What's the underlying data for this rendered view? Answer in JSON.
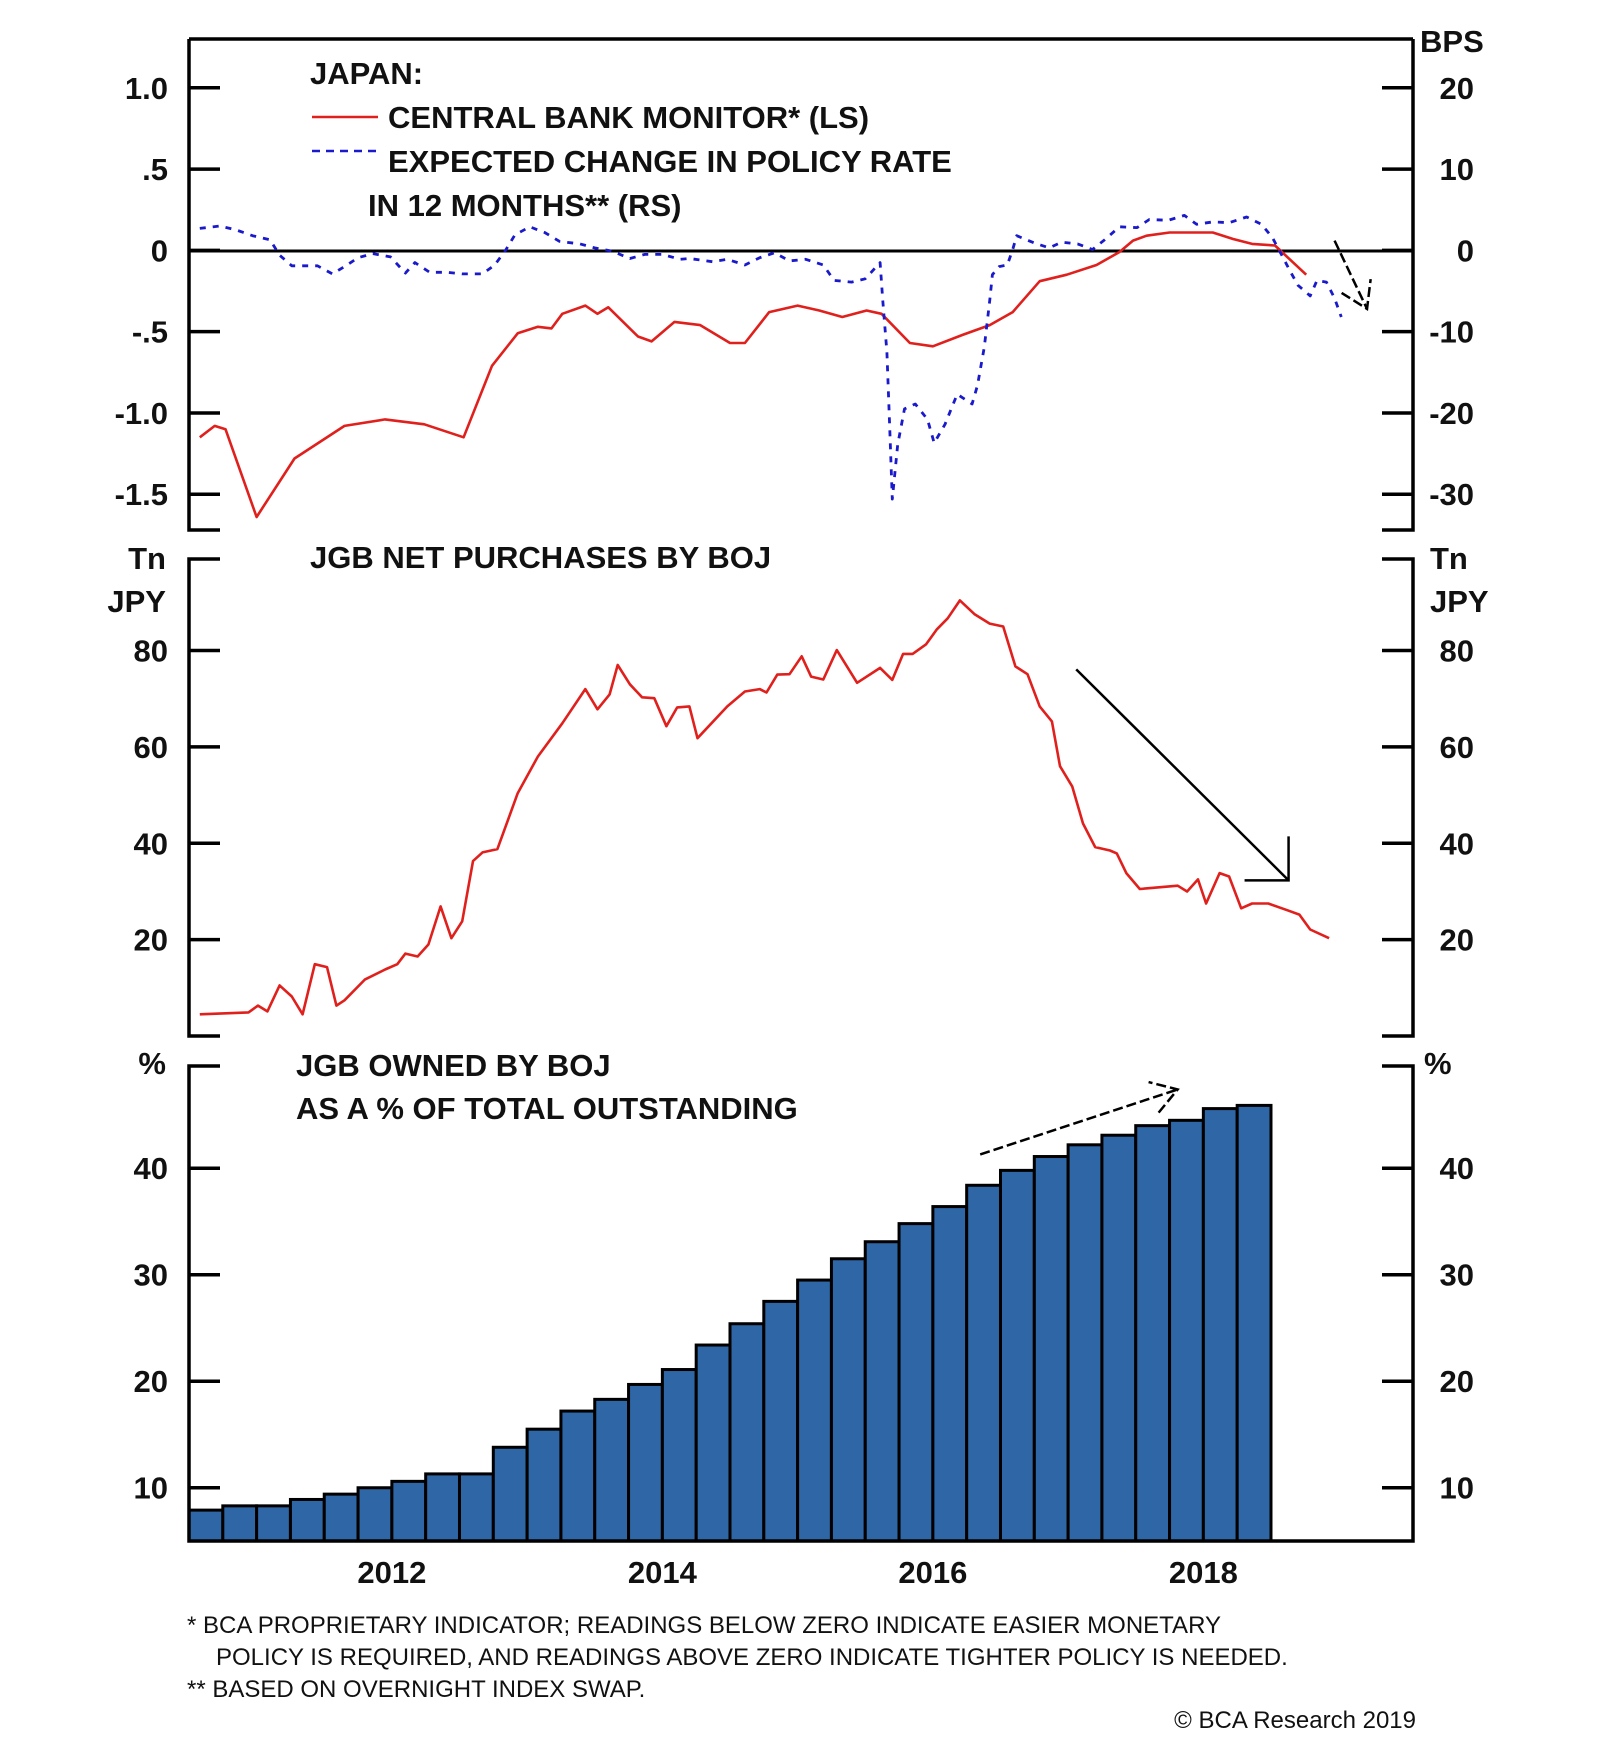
{
  "chart_data": [
    {
      "type": "line",
      "panel": "top",
      "title": "JAPAN:",
      "legend": [
        {
          "label": "CENTRAL BANK MONITOR* (LS)",
          "style": "solid",
          "color": "#e0201c"
        },
        {
          "label": "EXPECTED CHANGE IN POLICY RATE",
          "label2": "IN 12 MONTHS** (RS)",
          "style": "dashed",
          "color": "#1a1acc"
        }
      ],
      "legend_placement": "top-left",
      "left_axis": {
        "label": "",
        "ylim": [
          -1.72,
          1.3
        ],
        "ticks": [
          1.0,
          0.5,
          0,
          -0.5,
          -1.0,
          -1.5
        ],
        "tick_labels": [
          "1.0",
          ".5",
          "0",
          "-.5",
          "-1.0",
          "-1.5"
        ]
      },
      "right_axis": {
        "label": "BPS",
        "ylim": [
          -34.4,
          26
        ],
        "ticks": [
          20,
          10,
          0,
          -10,
          -20,
          -30
        ],
        "tick_labels": [
          "20",
          "10",
          "0",
          "-10",
          "-20",
          "-30"
        ]
      },
      "zero_line": true,
      "series": [
        {
          "name": "CENTRAL BANK MONITOR* (LS)",
          "axis": "left",
          "color": "#e0201c",
          "x": [
            2010.58,
            2010.69,
            2010.77,
            2011.0,
            2011.28,
            2011.65,
            2011.95,
            2012.24,
            2012.53,
            2012.74,
            2012.93,
            2013.08,
            2013.18,
            2013.26,
            2013.43,
            2013.52,
            2013.6,
            2013.82,
            2013.92,
            2014.09,
            2014.28,
            2014.5,
            2014.61,
            2014.79,
            2015.0,
            2015.16,
            2015.33,
            2015.51,
            2015.62,
            2015.83,
            2016.0,
            2016.22,
            2016.42,
            2016.59,
            2016.79,
            2016.99,
            2017.21,
            2017.38,
            2017.48,
            2017.58,
            2017.75,
            2018.07,
            2018.22,
            2018.36,
            2018.53,
            2018.62,
            2018.76
          ],
          "y": [
            -1.15,
            -1.08,
            -1.1,
            -1.64,
            -1.28,
            -1.08,
            -1.04,
            -1.07,
            -1.15,
            -0.71,
            -0.51,
            -0.47,
            -0.48,
            -0.39,
            -0.34,
            -0.39,
            -0.35,
            -0.53,
            -0.56,
            -0.44,
            -0.46,
            -0.57,
            -0.57,
            -0.38,
            -0.34,
            -0.37,
            -0.41,
            -0.37,
            -0.39,
            -0.57,
            -0.59,
            -0.52,
            -0.46,
            -0.38,
            -0.19,
            -0.15,
            -0.09,
            -0.01,
            0.06,
            0.09,
            0.11,
            0.11,
            0.07,
            0.04,
            0.03,
            -0.04,
            -0.15
          ]
        },
        {
          "name": "EXPECTED CHANGE IN POLICY RATE IN 12 MONTHS** (RS)",
          "axis": "right",
          "color": "#1a1acc",
          "x": [
            2010.58,
            2010.73,
            2010.85,
            2010.97,
            2011.1,
            2011.17,
            2011.26,
            2011.45,
            2011.56,
            2011.65,
            2011.75,
            2011.86,
            2011.99,
            2012.1,
            2012.17,
            2012.28,
            2012.41,
            2012.52,
            2012.67,
            2012.76,
            2012.84,
            2012.91,
            2013.02,
            2013.13,
            2013.24,
            2013.39,
            2013.5,
            2013.63,
            2013.76,
            2013.87,
            2014.0,
            2014.13,
            2014.2,
            2014.37,
            2014.48,
            2014.61,
            2014.72,
            2014.83,
            2014.94,
            2015.06,
            2015.19,
            2015.27,
            2015.4,
            2015.5,
            2015.61,
            2015.63,
            2015.66,
            2015.68,
            2015.7,
            2015.74,
            2015.79,
            2015.87,
            2015.96,
            2016.01,
            2016.09,
            2016.18,
            2016.29,
            2016.33,
            2016.38,
            2016.42,
            2016.44,
            2016.49,
            2016.55,
            2016.59,
            2016.62,
            2016.75,
            2016.86,
            2016.95,
            2017.07,
            2017.18,
            2017.27,
            2017.38,
            2017.51,
            2017.6,
            2017.74,
            2017.86,
            2017.95,
            2018.07,
            2018.19,
            2018.32,
            2018.43,
            2018.51,
            2018.58,
            2018.64,
            2018.7,
            2018.79,
            2018.84,
            2018.91,
            2018.97,
            2019.02
          ],
          "y": [
            2.7,
            3.0,
            2.5,
            1.8,
            1.3,
            -0.6,
            -1.9,
            -1.9,
            -2.9,
            -2.0,
            -0.9,
            -0.4,
            -0.8,
            -2.8,
            -1.5,
            -2.7,
            -2.7,
            -2.9,
            -2.9,
            -1.8,
            0.0,
            1.9,
            2.9,
            2.2,
            1.1,
            0.8,
            0.3,
            -0.1,
            -1.0,
            -0.5,
            -0.5,
            -1.1,
            -1.0,
            -1.4,
            -1.1,
            -1.8,
            -0.9,
            -0.3,
            -1.3,
            -1.1,
            -1.8,
            -3.7,
            -3.9,
            -3.5,
            -1.5,
            -6.2,
            -12.5,
            -21.4,
            -30.6,
            -23.9,
            -19.5,
            -18.9,
            -20.8,
            -23.7,
            -21.4,
            -17.7,
            -18.9,
            -16.6,
            -11.9,
            -6.2,
            -3.0,
            -2.0,
            -1.8,
            0.1,
            1.8,
            0.9,
            0.3,
            1.0,
            0.8,
            0.1,
            1.3,
            2.9,
            2.8,
            3.8,
            3.7,
            4.3,
            3.2,
            3.5,
            3.4,
            4.1,
            3.2,
            1.6,
            -0.6,
            -2.5,
            -4.3,
            -5.6,
            -3.7,
            -3.9,
            -5.9,
            -8.2
          ]
        }
      ],
      "annotations": [
        {
          "type": "arrow",
          "direction": "down",
          "from": [
            2018.97,
            1.2
          ],
          "to": [
            2019.21,
            -7.2
          ],
          "axis": "right"
        }
      ]
    },
    {
      "type": "line",
      "panel": "middle",
      "title": "JGB NET PURCHASES BY BOJ",
      "left_axis": {
        "label": "Tn JPY",
        "label_lines": [
          "Tn",
          "JPY"
        ],
        "ylim": [
          0,
          99
        ],
        "ticks": [
          80,
          60,
          40,
          20
        ],
        "tick_labels": [
          "80",
          "60",
          "40",
          "20"
        ]
      },
      "right_axis": {
        "label": "Tn JPY",
        "label_lines": [
          "Tn",
          "JPY"
        ],
        "ylim": [
          0,
          99
        ],
        "ticks": [
          80,
          60,
          40,
          20
        ],
        "tick_labels": [
          "80",
          "60",
          "40",
          "20"
        ]
      },
      "series": [
        {
          "name": "JGB NET PURCHASES BY BOJ",
          "axis": "left",
          "color": "#e0201c",
          "x": [
            2010.58,
            2010.94,
            2011.01,
            2011.08,
            2011.17,
            2011.26,
            2011.34,
            2011.43,
            2011.52,
            2011.59,
            2011.65,
            2011.8,
            2011.95,
            2012.04,
            2012.1,
            2012.19,
            2012.27,
            2012.36,
            2012.44,
            2012.52,
            2012.6,
            2012.67,
            2012.78,
            2012.93,
            2013.08,
            2013.26,
            2013.43,
            2013.52,
            2013.61,
            2013.67,
            2013.76,
            2013.85,
            2013.94,
            2014.03,
            2014.11,
            2014.2,
            2014.26,
            2014.48,
            2014.61,
            2014.72,
            2014.77,
            2014.85,
            2014.94,
            2015.03,
            2015.1,
            2015.19,
            2015.29,
            2015.44,
            2015.61,
            2015.7,
            2015.78,
            2015.85,
            2015.95,
            2016.03,
            2016.11,
            2016.2,
            2016.31,
            2016.42,
            2016.52,
            2016.61,
            2016.7,
            2016.79,
            2016.88,
            2016.94,
            2017.03,
            2017.11,
            2017.2,
            2017.31,
            2017.36,
            2017.43,
            2017.53,
            2017.81,
            2017.88,
            2017.96,
            2018.02,
            2018.12,
            2018.19,
            2018.28,
            2018.36,
            2018.48,
            2018.62,
            2018.71,
            2018.79,
            2018.93
          ],
          "y": [
            4.5,
            4.9,
            6.3,
            5.1,
            10.5,
            8.2,
            4.5,
            14.9,
            14.3,
            6.3,
            7.4,
            11.7,
            13.8,
            14.9,
            17.1,
            16.5,
            19.0,
            26.9,
            20.3,
            23.8,
            36.3,
            38.1,
            38.8,
            50.4,
            58.0,
            64.9,
            72.0,
            67.8,
            70.9,
            77.0,
            73.0,
            70.3,
            70.1,
            64.3,
            68.2,
            68.4,
            61.8,
            68.4,
            71.5,
            72.0,
            71.3,
            75.0,
            75.1,
            78.8,
            74.6,
            74.0,
            80.1,
            73.3,
            76.4,
            73.9,
            79.3,
            79.3,
            81.3,
            84.4,
            86.7,
            90.4,
            87.5,
            85.6,
            85.0,
            76.7,
            75.1,
            68.4,
            65.3,
            56.0,
            51.8,
            44.1,
            39.2,
            38.5,
            37.9,
            33.8,
            30.5,
            31.2,
            30.0,
            32.5,
            27.5,
            33.8,
            33.1,
            26.5,
            27.5,
            27.5,
            26.1,
            25.2,
            22.1,
            20.3
          ]
        }
      ],
      "annotations": [
        {
          "type": "arrow",
          "direction": "down-right",
          "from": [
            2017.06,
            76.1
          ],
          "to": [
            2018.63,
            32.3
          ],
          "axis": "left"
        }
      ]
    },
    {
      "type": "bar",
      "panel": "bottom",
      "title": "JGB OWNED BY BOJ",
      "subtitle": "AS A % OF TOTAL OUTSTANDING",
      "left_axis": {
        "label": "%",
        "ylim": [
          5,
          49.6
        ],
        "ticks": [
          40,
          30,
          20,
          10
        ],
        "tick_labels": [
          "40",
          "30",
          "20",
          "10"
        ]
      },
      "right_axis": {
        "label": "%",
        "ylim": [
          5,
          49.6
        ],
        "ticks": [
          40,
          30,
          20,
          10
        ],
        "tick_labels": [
          "40",
          "30",
          "20",
          "10"
        ]
      },
      "categories": [
        "2010Q3",
        "2010Q4",
        "2011Q1",
        "2011Q2",
        "2011Q3",
        "2011Q4",
        "2012Q1",
        "2012Q2",
        "2012Q3",
        "2012Q4",
        "2013Q1",
        "2013Q2",
        "2013Q3",
        "2013Q4",
        "2014Q1",
        "2014Q2",
        "2014Q3",
        "2014Q4",
        "2015Q1",
        "2015Q2",
        "2015Q3",
        "2015Q4",
        "2016Q1",
        "2016Q2",
        "2016Q3",
        "2016Q4",
        "2017Q1",
        "2017Q2",
        "2017Q3",
        "2017Q4",
        "2018Q1",
        "2018Q2"
      ],
      "x_start": [
        2010.5,
        2010.75,
        2011.0,
        2011.25,
        2011.5,
        2011.75,
        2012.0,
        2012.25,
        2012.5,
        2012.75,
        2013.0,
        2013.25,
        2013.5,
        2013.75,
        2014.0,
        2014.25,
        2014.5,
        2014.75,
        2015.0,
        2015.25,
        2015.5,
        2015.75,
        2016.0,
        2016.25,
        2016.5,
        2016.75,
        2017.0,
        2017.25,
        2017.5,
        2017.75,
        2018.0,
        2018.25
      ],
      "values": [
        7.9,
        8.3,
        8.3,
        8.9,
        9.4,
        10.0,
        10.6,
        11.3,
        11.3,
        13.8,
        15.5,
        17.2,
        18.3,
        19.7,
        21.1,
        23.4,
        25.4,
        27.5,
        29.5,
        31.5,
        33.1,
        34.8,
        36.4,
        38.4,
        39.8,
        41.1,
        42.2,
        43.1,
        44.0,
        44.5,
        45.6,
        45.9
      ],
      "bar_color": "#2e66a6",
      "annotations": [
        {
          "type": "arrow",
          "direction": "up-right",
          "from": [
            2016.35,
            41.3
          ],
          "to": [
            2017.81,
            47.4
          ],
          "axis": "left"
        }
      ]
    }
  ],
  "x_axis": {
    "xlim": [
      2010.5,
      2019.55
    ],
    "ticks": [
      2012,
      2014,
      2016,
      2018
    ],
    "tick_labels": [
      "2012",
      "2014",
      "2016",
      "2018"
    ]
  },
  "footnotes": {
    "line1": "*  BCA PROPRIETARY INDICATOR; READINGS BELOW ZERO INDICATE EASIER MONETARY",
    "line2": "POLICY IS REQUIRED, AND READINGS ABOVE ZERO INDICATE TIGHTER POLICY IS NEEDED.",
    "line3": "** BASED ON OVERNIGHT INDEX SWAP."
  },
  "copyright": "© BCA Research 2019"
}
